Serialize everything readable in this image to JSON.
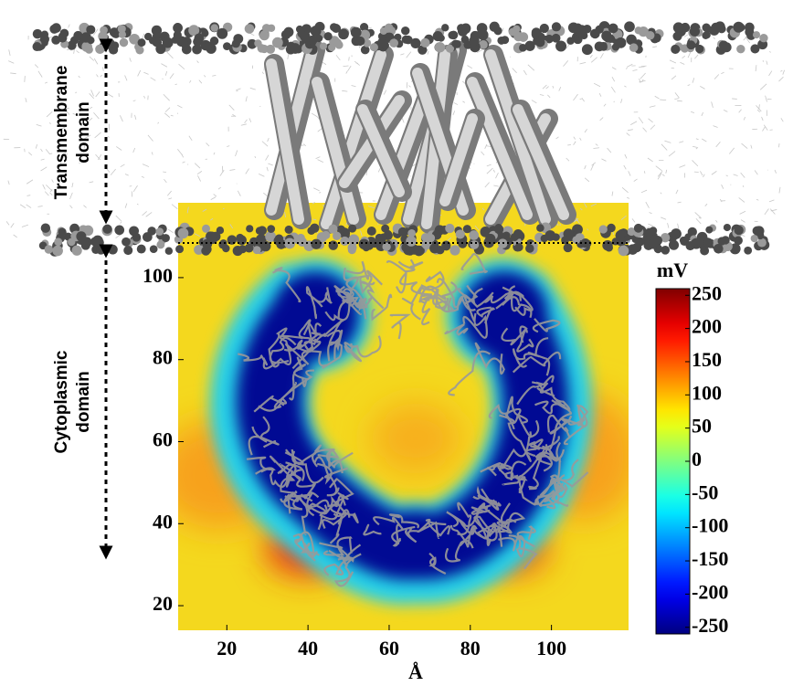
{
  "chart_data": {
    "type": "heatmap",
    "x_label": "Å",
    "xlim": [
      8,
      119
    ],
    "xticks": [
      20,
      40,
      60,
      80,
      100
    ],
    "ylim": [
      14,
      108
    ],
    "yticks": [
      20,
      40,
      60,
      80,
      100
    ],
    "colorbar_label": "mV",
    "clim": [
      -260,
      260
    ],
    "colorbar_ticks": [
      250,
      200,
      150,
      100,
      50,
      0,
      -50,
      -100,
      -150,
      -200,
      -250
    ],
    "colormap": "jet",
    "annotations": [
      "Transmembrane\ndomain",
      "Cytoplasmic\ndomain"
    ]
  }
}
